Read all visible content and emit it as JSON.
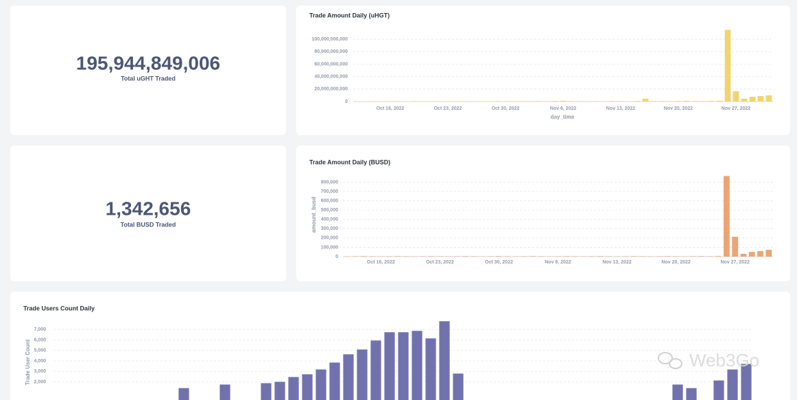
{
  "cards": [
    {
      "value": "195,944,849,006",
      "label": "Total uGHT Traded"
    },
    {
      "value": "1,342,656",
      "label": "Total BUSD Traded"
    }
  ],
  "watermark": "Web3Go",
  "chart_data": [
    {
      "type": "bar",
      "title": "Trade Amount Daily (uHGT)",
      "x_label": "day_time",
      "color": "#f2d46f",
      "grid": true,
      "x": [
        "2022-10-12",
        "2022-10-13",
        "2022-10-14",
        "2022-10-15",
        "2022-10-16",
        "2022-10-17",
        "2022-10-18",
        "2022-10-19",
        "2022-10-20",
        "2022-10-21",
        "2022-10-22",
        "2022-10-23",
        "2022-10-24",
        "2022-10-25",
        "2022-10-26",
        "2022-10-27",
        "2022-10-28",
        "2022-10-29",
        "2022-10-30",
        "2022-10-31",
        "2022-11-01",
        "2022-11-02",
        "2022-11-03",
        "2022-11-04",
        "2022-11-05",
        "2022-11-06",
        "2022-11-07",
        "2022-11-08",
        "2022-11-09",
        "2022-11-10",
        "2022-11-11",
        "2022-11-12",
        "2022-11-13",
        "2022-11-14",
        "2022-11-15",
        "2022-11-16",
        "2022-11-17",
        "2022-11-18",
        "2022-11-19",
        "2022-11-20",
        "2022-11-21",
        "2022-11-22",
        "2022-11-23",
        "2022-11-24",
        "2022-11-25",
        "2022-11-26",
        "2022-11-27",
        "2022-11-28",
        "2022-11-29",
        "2022-11-30",
        "2022-12-01"
      ],
      "values": [
        300000000,
        400000000,
        500000000,
        400000000,
        600000000,
        500000000,
        400000000,
        700000000,
        500000000,
        600000000,
        400000000,
        500000000,
        600000000,
        500000000,
        400000000,
        600000000,
        500000000,
        700000000,
        500000000,
        600000000,
        600000000,
        500000000,
        700000000,
        600000000,
        900000000,
        1200000000,
        800000000,
        600000000,
        500000000,
        700000000,
        600000000,
        800000000,
        700000000,
        600000000,
        900000000,
        4500000000,
        800000000,
        700000000,
        600000000,
        900000000,
        1200000000,
        800000000,
        700000000,
        1000000000,
        1300000000,
        115000000000,
        16500000000,
        4500000000,
        7700000000,
        8800000000,
        10000000000
      ],
      "xlim": [
        "2022-10-12",
        "2022-12-01"
      ],
      "xticks": [
        {
          "value": "2022-10-16",
          "label": "Oct 16, 2022"
        },
        {
          "value": "2022-10-23",
          "label": "Oct 23, 2022"
        },
        {
          "value": "2022-10-30",
          "label": "Oct 30, 2022"
        },
        {
          "value": "2022-11-06",
          "label": "Nov 6, 2022"
        },
        {
          "value": "2022-11-13",
          "label": "Nov 13, 2022"
        },
        {
          "value": "2022-11-20",
          "label": "Nov 20, 2022"
        },
        {
          "value": "2022-11-27",
          "label": "Nov 27, 2022"
        }
      ],
      "ylim": [
        0,
        120000000000
      ],
      "yticks": [
        0,
        {
          "value": 20000000000,
          "label": "20,000,000,000"
        },
        {
          "value": 40000000000,
          "label": "40,000,000,000"
        },
        {
          "value": 60000000000,
          "label": "60,000,000,000"
        },
        {
          "value": 80000000000,
          "label": "80,000,000,000"
        },
        {
          "value": 100000000000,
          "label": "100,000,000,000"
        }
      ]
    },
    {
      "type": "bar",
      "title": "Trade Amount Daily (BUSD)",
      "y_label": "amount_busd",
      "color": "#eba574",
      "grid": true,
      "x": [
        "2022-10-12",
        "2022-10-13",
        "2022-10-14",
        "2022-10-15",
        "2022-10-16",
        "2022-10-17",
        "2022-10-18",
        "2022-10-19",
        "2022-10-20",
        "2022-10-21",
        "2022-10-22",
        "2022-10-23",
        "2022-10-24",
        "2022-10-25",
        "2022-10-26",
        "2022-10-27",
        "2022-10-28",
        "2022-10-29",
        "2022-10-30",
        "2022-10-31",
        "2022-11-01",
        "2022-11-02",
        "2022-11-03",
        "2022-11-04",
        "2022-11-05",
        "2022-11-06",
        "2022-11-07",
        "2022-11-08",
        "2022-11-09",
        "2022-11-10",
        "2022-11-11",
        "2022-11-12",
        "2022-11-13",
        "2022-11-14",
        "2022-11-15",
        "2022-11-16",
        "2022-11-17",
        "2022-11-18",
        "2022-11-19",
        "2022-11-20",
        "2022-11-21",
        "2022-11-22",
        "2022-11-23",
        "2022-11-24",
        "2022-11-25",
        "2022-11-26",
        "2022-11-27",
        "2022-11-28",
        "2022-11-29",
        "2022-11-30",
        "2022-12-01"
      ],
      "values": [
        3000,
        4000,
        5000,
        4000,
        3000,
        4000,
        5000,
        4000,
        3000,
        4000,
        5000,
        4000,
        3000,
        4000,
        5000,
        4000,
        3000,
        4000,
        5000,
        4000,
        3000,
        4000,
        5000,
        4000,
        3000,
        4000,
        5000,
        4000,
        3000,
        4000,
        5000,
        4000,
        3000,
        4000,
        5000,
        4000,
        3000,
        4000,
        5000,
        4000,
        3000,
        4000,
        5000,
        4000,
        6000,
        867000,
        213000,
        30000,
        51000,
        59000,
        73000
      ],
      "xlim": [
        "2022-10-12",
        "2022-12-01"
      ],
      "xticks": [
        {
          "value": "2022-10-16",
          "label": "Oct 16, 2022"
        },
        {
          "value": "2022-10-23",
          "label": "Oct 23, 2022"
        },
        {
          "value": "2022-10-30",
          "label": "Oct 30, 2022"
        },
        {
          "value": "2022-11-06",
          "label": "Nov 6, 2022"
        },
        {
          "value": "2022-11-13",
          "label": "Nov 13, 2022"
        },
        {
          "value": "2022-11-20",
          "label": "Nov 20, 2022"
        },
        {
          "value": "2022-11-27",
          "label": "Nov 27, 2022"
        }
      ],
      "ylim": [
        0,
        900000
      ],
      "yticks": [
        0,
        {
          "value": 100000,
          "label": "100,000"
        },
        {
          "value": 200000,
          "label": "200,000"
        },
        {
          "value": 300000,
          "label": "300,000"
        },
        {
          "value": 400000,
          "label": "400,000"
        },
        {
          "value": 500000,
          "label": "500,000"
        },
        {
          "value": 600000,
          "label": "600,000"
        },
        {
          "value": 700000,
          "label": "700,000"
        },
        {
          "value": 800000,
          "label": "800,000"
        }
      ]
    },
    {
      "type": "bar",
      "title": "Trade Users Count Daily",
      "y_label": "Trade User Count",
      "color": "#7172ad",
      "grid": true,
      "values": [
        0,
        0,
        0,
        0,
        0,
        0,
        0,
        0,
        0,
        1400,
        0,
        0,
        1740,
        0,
        0,
        1870,
        2000,
        2460,
        2720,
        3180,
        3840,
        4630,
        5090,
        5950,
        6740,
        6740,
        6870,
        6150,
        7790,
        2790,
        0,
        0,
        0,
        0,
        0,
        0,
        0,
        0,
        0,
        0,
        0,
        0,
        0,
        0,
        0,
        1740,
        1400,
        0,
        2130,
        3180,
        3710
      ],
      "ylim": [
        0,
        8000
      ],
      "yticks": [
        {
          "value": 2000,
          "label": "2,000"
        },
        {
          "value": 3000,
          "label": "3,000"
        },
        {
          "value": 4000,
          "label": "4,000"
        },
        {
          "value": 5000,
          "label": "5,000"
        },
        {
          "value": 6000,
          "label": "6,000"
        },
        {
          "value": 7000,
          "label": "7,000"
        }
      ]
    }
  ]
}
